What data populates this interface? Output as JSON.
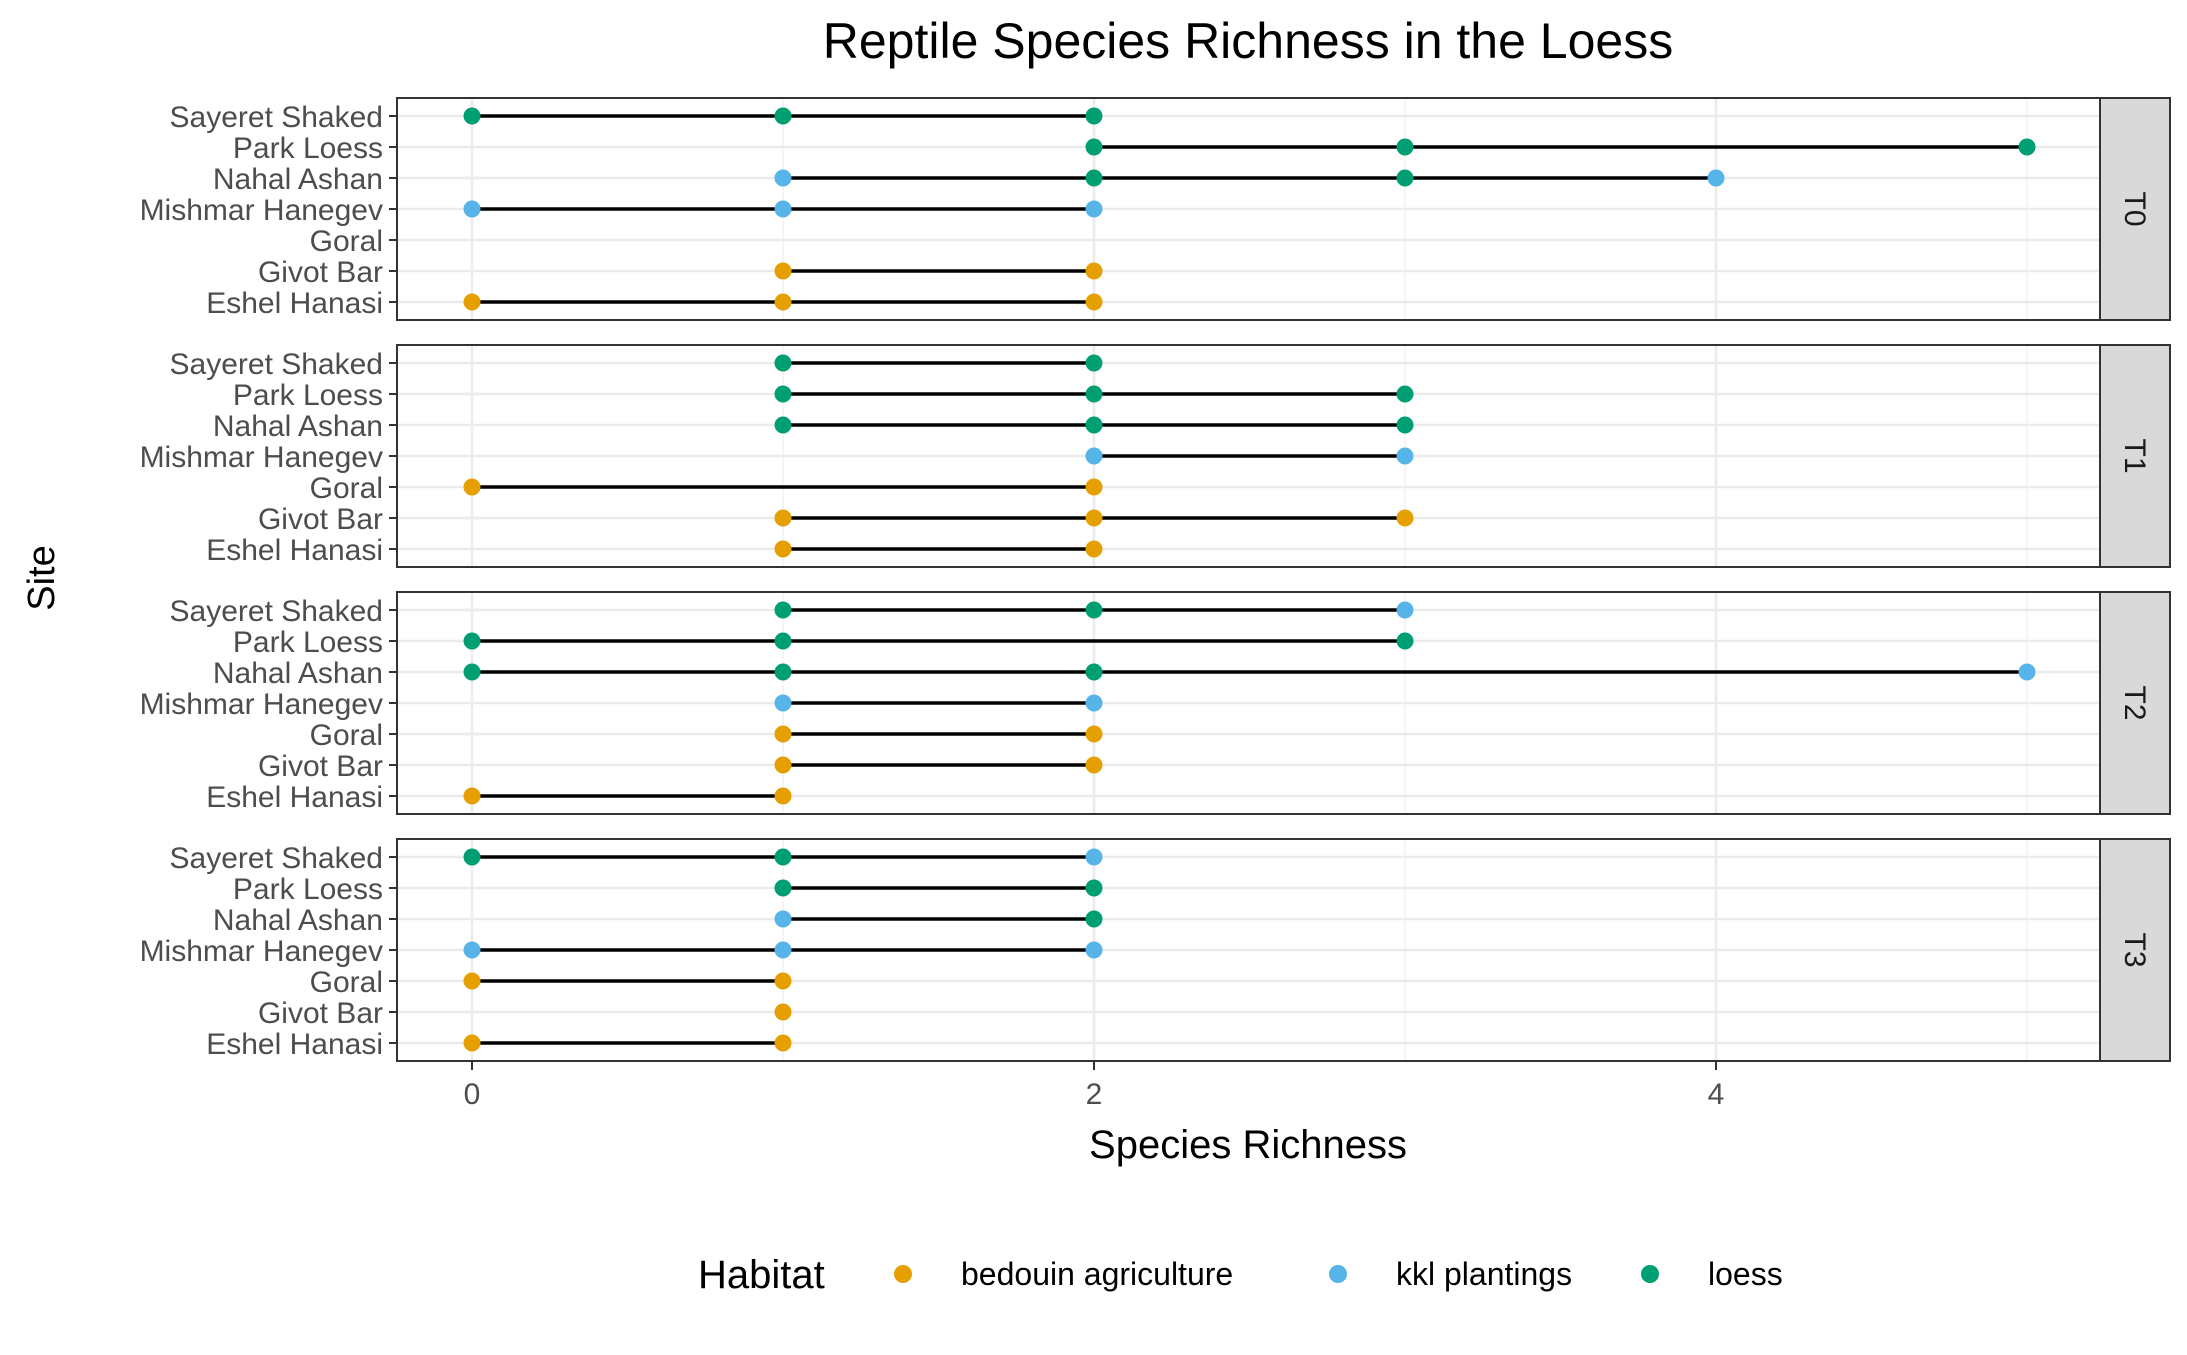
{
  "chart_data": {
    "type": "dot-range",
    "title": "Reptile Species Richness in the Loess",
    "xlabel": "Species Richness",
    "ylabel": "Site",
    "xlim": [
      -0.25,
      5.25
    ],
    "xticks": [
      0,
      2,
      4
    ],
    "grid": true,
    "sites": [
      "Sayeret Shaked",
      "Park Loess",
      "Nahal Ashan",
      "Mishmar Hanegev",
      "Goral",
      "Givot Bar",
      "Eshel Hanasi"
    ],
    "legend": {
      "title": "Habitat",
      "position": "bottom",
      "items": [
        {
          "key": "bedouin",
          "label": "bedouin agriculture",
          "color": "#E69F00"
        },
        {
          "key": "kkl",
          "label": "kkl plantings",
          "color": "#56B4E9"
        },
        {
          "key": "loess",
          "label": "loess",
          "color": "#009E73"
        }
      ]
    },
    "facets": [
      {
        "label": "T0",
        "rows": [
          {
            "site": "Sayeret Shaked",
            "points": [
              {
                "x": 0,
                "h": "loess"
              },
              {
                "x": 1,
                "h": "loess"
              },
              {
                "x": 2,
                "h": "loess"
              }
            ]
          },
          {
            "site": "Park Loess",
            "points": [
              {
                "x": 2,
                "h": "loess"
              },
              {
                "x": 3,
                "h": "loess"
              },
              {
                "x": 5,
                "h": "loess"
              }
            ]
          },
          {
            "site": "Nahal Ashan",
            "points": [
              {
                "x": 1,
                "h": "kkl"
              },
              {
                "x": 2,
                "h": "loess"
              },
              {
                "x": 3,
                "h": "loess"
              },
              {
                "x": 4,
                "h": "kkl"
              }
            ]
          },
          {
            "site": "Mishmar Hanegev",
            "points": [
              {
                "x": 0,
                "h": "kkl"
              },
              {
                "x": 1,
                "h": "kkl"
              },
              {
                "x": 2,
                "h": "kkl"
              }
            ]
          },
          {
            "site": "Goral",
            "points": []
          },
          {
            "site": "Givot Bar",
            "points": [
              {
                "x": 1,
                "h": "bedouin"
              },
              {
                "x": 2,
                "h": "bedouin"
              }
            ]
          },
          {
            "site": "Eshel Hanasi",
            "points": [
              {
                "x": 0,
                "h": "bedouin"
              },
              {
                "x": 1,
                "h": "bedouin"
              },
              {
                "x": 2,
                "h": "bedouin"
              }
            ]
          }
        ]
      },
      {
        "label": "T1",
        "rows": [
          {
            "site": "Sayeret Shaked",
            "points": [
              {
                "x": 1,
                "h": "loess"
              },
              {
                "x": 2,
                "h": "loess"
              }
            ]
          },
          {
            "site": "Park Loess",
            "points": [
              {
                "x": 1,
                "h": "loess"
              },
              {
                "x": 2,
                "h": "loess"
              },
              {
                "x": 3,
                "h": "loess"
              }
            ]
          },
          {
            "site": "Nahal Ashan",
            "points": [
              {
                "x": 1,
                "h": "loess"
              },
              {
                "x": 2,
                "h": "loess"
              },
              {
                "x": 3,
                "h": "loess"
              }
            ]
          },
          {
            "site": "Mishmar Hanegev",
            "points": [
              {
                "x": 2,
                "h": "kkl"
              },
              {
                "x": 3,
                "h": "kkl"
              }
            ]
          },
          {
            "site": "Goral",
            "points": [
              {
                "x": 0,
                "h": "bedouin"
              },
              {
                "x": 2,
                "h": "bedouin"
              }
            ]
          },
          {
            "site": "Givot Bar",
            "points": [
              {
                "x": 1,
                "h": "bedouin"
              },
              {
                "x": 2,
                "h": "bedouin"
              },
              {
                "x": 3,
                "h": "bedouin"
              }
            ]
          },
          {
            "site": "Eshel Hanasi",
            "points": [
              {
                "x": 1,
                "h": "bedouin"
              },
              {
                "x": 2,
                "h": "bedouin"
              }
            ]
          }
        ]
      },
      {
        "label": "T2",
        "rows": [
          {
            "site": "Sayeret Shaked",
            "points": [
              {
                "x": 1,
                "h": "loess"
              },
              {
                "x": 2,
                "h": "loess"
              },
              {
                "x": 3,
                "h": "kkl"
              }
            ]
          },
          {
            "site": "Park Loess",
            "points": [
              {
                "x": 0,
                "h": "loess"
              },
              {
                "x": 1,
                "h": "loess"
              },
              {
                "x": 3,
                "h": "loess"
              }
            ]
          },
          {
            "site": "Nahal Ashan",
            "points": [
              {
                "x": 0,
                "h": "loess"
              },
              {
                "x": 1,
                "h": "loess"
              },
              {
                "x": 2,
                "h": "loess"
              },
              {
                "x": 5,
                "h": "kkl"
              }
            ]
          },
          {
            "site": "Mishmar Hanegev",
            "points": [
              {
                "x": 1,
                "h": "kkl"
              },
              {
                "x": 2,
                "h": "kkl"
              }
            ]
          },
          {
            "site": "Goral",
            "points": [
              {
                "x": 1,
                "h": "bedouin"
              },
              {
                "x": 2,
                "h": "bedouin"
              }
            ]
          },
          {
            "site": "Givot Bar",
            "points": [
              {
                "x": 1,
                "h": "bedouin"
              },
              {
                "x": 2,
                "h": "bedouin"
              }
            ]
          },
          {
            "site": "Eshel Hanasi",
            "points": [
              {
                "x": 0,
                "h": "bedouin"
              },
              {
                "x": 1,
                "h": "bedouin"
              }
            ]
          }
        ]
      },
      {
        "label": "T3",
        "rows": [
          {
            "site": "Sayeret Shaked",
            "points": [
              {
                "x": 0,
                "h": "loess"
              },
              {
                "x": 1,
                "h": "loess"
              },
              {
                "x": 2,
                "h": "kkl"
              }
            ]
          },
          {
            "site": "Park Loess",
            "points": [
              {
                "x": 1,
                "h": "loess"
              },
              {
                "x": 2,
                "h": "loess"
              }
            ]
          },
          {
            "site": "Nahal Ashan",
            "points": [
              {
                "x": 1,
                "h": "kkl"
              },
              {
                "x": 2,
                "h": "loess"
              }
            ]
          },
          {
            "site": "Mishmar Hanegev",
            "points": [
              {
                "x": 0,
                "h": "kkl"
              },
              {
                "x": 1,
                "h": "kkl"
              },
              {
                "x": 2,
                "h": "kkl"
              }
            ]
          },
          {
            "site": "Goral",
            "points": [
              {
                "x": 0,
                "h": "bedouin"
              },
              {
                "x": 1,
                "h": "bedouin"
              }
            ]
          },
          {
            "site": "Givot Bar",
            "points": [
              {
                "x": 1,
                "h": "bedouin"
              }
            ]
          },
          {
            "site": "Eshel Hanasi",
            "points": [
              {
                "x": 0,
                "h": "bedouin"
              },
              {
                "x": 1,
                "h": "bedouin"
              }
            ]
          }
        ]
      }
    ]
  }
}
